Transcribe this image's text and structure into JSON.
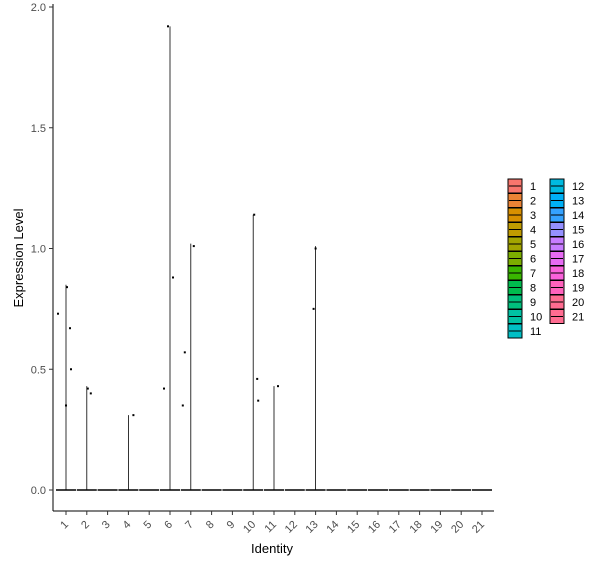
{
  "chart_data": {
    "type": "violin",
    "xlabel": "Identity",
    "ylabel": "Expression Level",
    "ylim": [
      -0.1,
      2.0
    ],
    "yticks": [
      0.0,
      0.5,
      1.0,
      1.5,
      2.0
    ],
    "yticklabels": [
      "0.0",
      "0.5",
      "1.0",
      "1.5",
      "2.0"
    ],
    "categories": [
      "1",
      "2",
      "3",
      "4",
      "5",
      "6",
      "7",
      "8",
      "9",
      "10",
      "11",
      "12",
      "13",
      "14",
      "15",
      "16",
      "17",
      "18",
      "19",
      "20",
      "21"
    ],
    "series": [
      {
        "name": "1",
        "color": "#F8766D",
        "max": 0.85,
        "points": [
          0.73,
          0.84,
          0.67,
          0.5,
          0.35
        ]
      },
      {
        "name": "2",
        "color": "#EB8335",
        "max": 0.43,
        "points": [
          0.42,
          0.4
        ]
      },
      {
        "name": "3",
        "color": "#D89000",
        "max": 0.0,
        "points": []
      },
      {
        "name": "4",
        "color": "#C09B00",
        "max": 0.31,
        "points": [
          0.31
        ]
      },
      {
        "name": "5",
        "color": "#A3A500",
        "max": 0.0,
        "points": []
      },
      {
        "name": "6",
        "color": "#7CAE00",
        "max": 1.92,
        "points": [
          1.92,
          0.88,
          0.42
        ]
      },
      {
        "name": "7",
        "color": "#39B600",
        "max": 1.02,
        "points": [
          1.01,
          0.57,
          0.35
        ]
      },
      {
        "name": "8",
        "color": "#00BB4E",
        "max": 0.0,
        "points": []
      },
      {
        "name": "9",
        "color": "#00BF7D",
        "max": 0.0,
        "points": []
      },
      {
        "name": "10",
        "color": "#00C1A3",
        "max": 1.14,
        "points": [
          1.14,
          0.46,
          0.37
        ]
      },
      {
        "name": "11",
        "color": "#00BFC4",
        "max": 0.43,
        "points": [
          0.43
        ]
      },
      {
        "name": "12",
        "color": "#00BAE0",
        "max": 0.0,
        "points": []
      },
      {
        "name": "13",
        "color": "#00B0F6",
        "max": 1.01,
        "points": [
          1.0,
          0.75
        ]
      },
      {
        "name": "14",
        "color": "#35A2FF",
        "max": 0.0,
        "points": []
      },
      {
        "name": "15",
        "color": "#9590FF",
        "max": 0.0,
        "points": []
      },
      {
        "name": "16",
        "color": "#C77CFF",
        "max": 0.0,
        "points": []
      },
      {
        "name": "17",
        "color": "#E76BF3",
        "max": 0.0,
        "points": []
      },
      {
        "name": "18",
        "color": "#FA62DB",
        "max": 0.0,
        "points": []
      },
      {
        "name": "19",
        "color": "#FF62BC",
        "max": 0.0,
        "points": []
      },
      {
        "name": "20",
        "color": "#FF6C91",
        "max": 0.0,
        "points": []
      },
      {
        "name": "21",
        "color": "#FF6C91",
        "max": 0.0,
        "points": []
      }
    ],
    "legend": {
      "position": "right",
      "columns": 2,
      "entries": [
        "1",
        "2",
        "3",
        "4",
        "5",
        "6",
        "7",
        "8",
        "9",
        "10",
        "11",
        "12",
        "13",
        "14",
        "15",
        "16",
        "17",
        "18",
        "19",
        "20",
        "21"
      ],
      "colors": [
        "#F8766D",
        "#EB8335",
        "#D89000",
        "#C09B00",
        "#A3A500",
        "#7CAE00",
        "#39B600",
        "#00BB4E",
        "#00BF7D",
        "#00C1A3",
        "#00BFC4",
        "#00BAE0",
        "#00B0F6",
        "#35A2FF",
        "#9590FF",
        "#C77CFF",
        "#E76BF3",
        "#FA62DB",
        "#FF62BC",
        "#FF6C91",
        "#FF6C91"
      ]
    },
    "grid": false
  }
}
